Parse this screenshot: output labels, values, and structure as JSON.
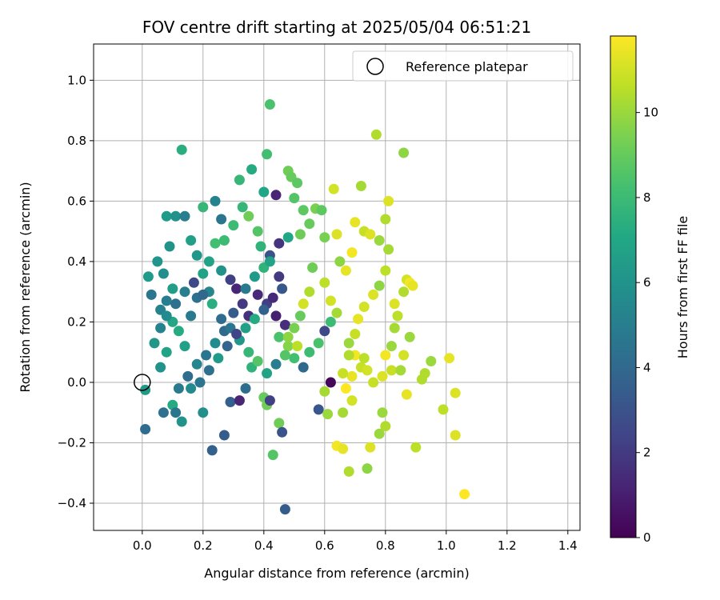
{
  "chart_data": {
    "type": "scatter",
    "title": "FOV centre drift starting at 2025/05/04 06:51:21",
    "xlabel": "Angular distance from reference (arcmin)",
    "ylabel": "Rotation from reference (arcmin)",
    "xlim": [
      -0.16,
      1.44
    ],
    "ylim": [
      -0.49,
      1.12
    ],
    "xticks": [
      0.0,
      0.2,
      0.4,
      0.6,
      0.8,
      1.0,
      1.2,
      1.4
    ],
    "xtick_labels": [
      "0.0",
      "0.2",
      "0.4",
      "0.6",
      "0.8",
      "1.0",
      "1.2",
      "1.4"
    ],
    "yticks": [
      -0.4,
      -0.2,
      0.0,
      0.2,
      0.4,
      0.6,
      0.8,
      1.0
    ],
    "ytick_labels": [
      "−0.4",
      "−0.2",
      "0.0",
      "0.2",
      "0.4",
      "0.6",
      "0.8",
      "1.0"
    ],
    "grid": true,
    "colormap": "viridis",
    "colorbar": {
      "label": "Hours from first FF file",
      "range": [
        0,
        11.8
      ],
      "ticks": [
        0,
        2,
        4,
        6,
        8,
        10
      ],
      "tick_labels": [
        "0",
        "2",
        "4",
        "6",
        "8",
        "10"
      ]
    },
    "legend": {
      "position": "top-right",
      "entries": [
        "Reference platepar"
      ]
    },
    "reference_point": {
      "x": 0.0,
      "y": 0.0
    },
    "points": [
      {
        "x": 0.01,
        "y": -0.025,
        "c": 6.3
      },
      {
        "x": 0.01,
        "y": -0.155,
        "c": 4.2
      },
      {
        "x": 0.04,
        "y": 0.13,
        "c": 6.2
      },
      {
        "x": 0.06,
        "y": 0.05,
        "c": 6.0
      },
      {
        "x": 0.08,
        "y": 0.1,
        "c": 6.8
      },
      {
        "x": 0.1,
        "y": 0.2,
        "c": 7.0
      },
      {
        "x": 0.12,
        "y": 0.17,
        "c": 7.2
      },
      {
        "x": 0.14,
        "y": 0.12,
        "c": 6.6
      },
      {
        "x": 0.06,
        "y": 0.24,
        "c": 5.2
      },
      {
        "x": 0.08,
        "y": 0.27,
        "c": 5.0
      },
      {
        "x": 0.1,
        "y": 0.31,
        "c": 6.5
      },
      {
        "x": 0.05,
        "y": 0.4,
        "c": 6.1
      },
      {
        "x": 0.07,
        "y": 0.36,
        "c": 5.8
      },
      {
        "x": 0.09,
        "y": 0.45,
        "c": 6.0
      },
      {
        "x": 0.08,
        "y": 0.55,
        "c": 6.4
      },
      {
        "x": 0.11,
        "y": 0.55,
        "c": 6.0
      },
      {
        "x": 0.13,
        "y": 0.77,
        "c": 7.4
      },
      {
        "x": 0.14,
        "y": 0.55,
        "c": 5.0
      },
      {
        "x": 0.16,
        "y": 0.47,
        "c": 6.6
      },
      {
        "x": 0.18,
        "y": 0.42,
        "c": 6.2
      },
      {
        "x": 0.2,
        "y": 0.36,
        "c": 6.8
      },
      {
        "x": 0.22,
        "y": 0.3,
        "c": 5.4
      },
      {
        "x": 0.18,
        "y": 0.28,
        "c": 4.4
      },
      {
        "x": 0.16,
        "y": 0.22,
        "c": 4.8
      },
      {
        "x": 0.2,
        "y": 0.58,
        "c": 7.8
      },
      {
        "x": 0.24,
        "y": 0.6,
        "c": 5.2
      },
      {
        "x": 0.26,
        "y": 0.54,
        "c": 4.6
      },
      {
        "x": 0.24,
        "y": 0.46,
        "c": 8.2
      },
      {
        "x": 0.27,
        "y": 0.47,
        "c": 8.0
      },
      {
        "x": 0.22,
        "y": 0.4,
        "c": 6.8
      },
      {
        "x": 0.26,
        "y": 0.37,
        "c": 6.0
      },
      {
        "x": 0.29,
        "y": 0.34,
        "c": 2.2
      },
      {
        "x": 0.31,
        "y": 0.31,
        "c": 1.2
      },
      {
        "x": 0.33,
        "y": 0.26,
        "c": 2.0
      },
      {
        "x": 0.35,
        "y": 0.22,
        "c": 1.6
      },
      {
        "x": 0.3,
        "y": 0.23,
        "c": 3.4
      },
      {
        "x": 0.27,
        "y": 0.17,
        "c": 4.0
      },
      {
        "x": 0.24,
        "y": 0.13,
        "c": 5.6
      },
      {
        "x": 0.21,
        "y": 0.09,
        "c": 4.6
      },
      {
        "x": 0.18,
        "y": 0.06,
        "c": 5.4
      },
      {
        "x": 0.15,
        "y": 0.02,
        "c": 4.2
      },
      {
        "x": 0.12,
        "y": -0.02,
        "c": 4.8
      },
      {
        "x": 0.1,
        "y": -0.075,
        "c": 7.2
      },
      {
        "x": 0.07,
        "y": -0.1,
        "c": 4.4
      },
      {
        "x": 0.11,
        "y": -0.1,
        "c": 4.6
      },
      {
        "x": 0.13,
        "y": -0.13,
        "c": 6.0
      },
      {
        "x": 0.2,
        "y": -0.1,
        "c": 5.8
      },
      {
        "x": 0.23,
        "y": -0.225,
        "c": 3.6
      },
      {
        "x": 0.27,
        "y": -0.175,
        "c": 3.4
      },
      {
        "x": 0.29,
        "y": -0.065,
        "c": 3.6
      },
      {
        "x": 0.32,
        "y": -0.06,
        "c": 1.2
      },
      {
        "x": 0.34,
        "y": -0.02,
        "c": 4.2
      },
      {
        "x": 0.36,
        "y": 0.05,
        "c": 7.6
      },
      {
        "x": 0.4,
        "y": -0.05,
        "c": 9.0
      },
      {
        "x": 0.41,
        "y": -0.075,
        "c": 9.2
      },
      {
        "x": 0.42,
        "y": -0.06,
        "c": 2.2
      },
      {
        "x": 0.43,
        "y": -0.24,
        "c": 8.6
      },
      {
        "x": 0.45,
        "y": -0.135,
        "c": 9.2
      },
      {
        "x": 0.46,
        "y": -0.165,
        "c": 3.0
      },
      {
        "x": 0.47,
        "y": -0.42,
        "c": 3.4
      },
      {
        "x": 0.42,
        "y": 0.92,
        "c": 8.4
      },
      {
        "x": 0.41,
        "y": 0.755,
        "c": 8.2
      },
      {
        "x": 0.36,
        "y": 0.705,
        "c": 7.2
      },
      {
        "x": 0.32,
        "y": 0.67,
        "c": 7.8
      },
      {
        "x": 0.4,
        "y": 0.63,
        "c": 7.0
      },
      {
        "x": 0.44,
        "y": 0.62,
        "c": 1.2
      },
      {
        "x": 0.48,
        "y": 0.7,
        "c": 9.2
      },
      {
        "x": 0.49,
        "y": 0.68,
        "c": 9.0
      },
      {
        "x": 0.51,
        "y": 0.66,
        "c": 8.8
      },
      {
        "x": 0.5,
        "y": 0.61,
        "c": 8.6
      },
      {
        "x": 0.53,
        "y": 0.57,
        "c": 8.8
      },
      {
        "x": 0.57,
        "y": 0.575,
        "c": 9.4
      },
      {
        "x": 0.59,
        "y": 0.57,
        "c": 8.8
      },
      {
        "x": 0.55,
        "y": 0.525,
        "c": 9.0
      },
      {
        "x": 0.52,
        "y": 0.49,
        "c": 9.2
      },
      {
        "x": 0.48,
        "y": 0.48,
        "c": 7.0
      },
      {
        "x": 0.45,
        "y": 0.46,
        "c": 1.8
      },
      {
        "x": 0.42,
        "y": 0.42,
        "c": 3.0
      },
      {
        "x": 0.4,
        "y": 0.38,
        "c": 7.6
      },
      {
        "x": 0.37,
        "y": 0.35,
        "c": 6.4
      },
      {
        "x": 0.34,
        "y": 0.31,
        "c": 4.8
      },
      {
        "x": 0.38,
        "y": 0.29,
        "c": 1.4
      },
      {
        "x": 0.41,
        "y": 0.26,
        "c": 2.2
      },
      {
        "x": 0.44,
        "y": 0.22,
        "c": 1.0
      },
      {
        "x": 0.47,
        "y": 0.19,
        "c": 1.6
      },
      {
        "x": 0.45,
        "y": 0.15,
        "c": 8.4
      },
      {
        "x": 0.48,
        "y": 0.12,
        "c": 9.6
      },
      {
        "x": 0.5,
        "y": 0.08,
        "c": 8.2
      },
      {
        "x": 0.53,
        "y": 0.05,
        "c": 4.0
      },
      {
        "x": 0.55,
        "y": 0.1,
        "c": 8.0
      },
      {
        "x": 0.58,
        "y": 0.13,
        "c": 8.4
      },
      {
        "x": 0.6,
        "y": 0.17,
        "c": 2.6
      },
      {
        "x": 0.62,
        "y": 0.2,
        "c": 8.0
      },
      {
        "x": 0.64,
        "y": 0.23,
        "c": 10.2
      },
      {
        "x": 0.62,
        "y": 0.27,
        "c": 11.0
      },
      {
        "x": 0.6,
        "y": 0.33,
        "c": 10.6
      },
      {
        "x": 0.6,
        "y": -0.03,
        "c": 10.2
      },
      {
        "x": 0.58,
        "y": -0.09,
        "c": 3.2
      },
      {
        "x": 0.61,
        "y": -0.105,
        "c": 10.0
      },
      {
        "x": 0.62,
        "y": 0.0,
        "c": 0.2
      },
      {
        "x": 0.63,
        "y": 0.64,
        "c": 11.0
      },
      {
        "x": 0.64,
        "y": 0.49,
        "c": 11.2
      },
      {
        "x": 0.6,
        "y": 0.48,
        "c": 9.4
      },
      {
        "x": 0.65,
        "y": 0.4,
        "c": 9.8
      },
      {
        "x": 0.67,
        "y": 0.37,
        "c": 11.4
      },
      {
        "x": 0.69,
        "y": 0.43,
        "c": 11.6
      },
      {
        "x": 0.7,
        "y": 0.53,
        "c": 11.4
      },
      {
        "x": 0.72,
        "y": 0.65,
        "c": 10.2
      },
      {
        "x": 0.73,
        "y": 0.5,
        "c": 10.8
      },
      {
        "x": 0.75,
        "y": 0.49,
        "c": 11.2
      },
      {
        "x": 0.78,
        "y": 0.47,
        "c": 10.0
      },
      {
        "x": 0.77,
        "y": 0.82,
        "c": 10.4
      },
      {
        "x": 0.81,
        "y": 0.6,
        "c": 11.2
      },
      {
        "x": 0.8,
        "y": 0.54,
        "c": 10.4
      },
      {
        "x": 0.81,
        "y": 0.44,
        "c": 10.2
      },
      {
        "x": 0.8,
        "y": 0.37,
        "c": 10.6
      },
      {
        "x": 0.78,
        "y": 0.32,
        "c": 9.8
      },
      {
        "x": 0.76,
        "y": 0.29,
        "c": 11.2
      },
      {
        "x": 0.73,
        "y": 0.25,
        "c": 11.0
      },
      {
        "x": 0.71,
        "y": 0.21,
        "c": 11.4
      },
      {
        "x": 0.7,
        "y": 0.16,
        "c": 10.8
      },
      {
        "x": 0.68,
        "y": 0.13,
        "c": 10.0
      },
      {
        "x": 0.7,
        "y": 0.09,
        "c": 11.6
      },
      {
        "x": 0.72,
        "y": 0.05,
        "c": 10.8
      },
      {
        "x": 0.69,
        "y": 0.02,
        "c": 11.4
      },
      {
        "x": 0.67,
        "y": -0.02,
        "c": 11.8
      },
      {
        "x": 0.69,
        "y": -0.06,
        "c": 11.0
      },
      {
        "x": 0.66,
        "y": -0.1,
        "c": 10.2
      },
      {
        "x": 0.64,
        "y": -0.21,
        "c": 11.6
      },
      {
        "x": 0.66,
        "y": -0.22,
        "c": 11.4
      },
      {
        "x": 0.68,
        "y": -0.295,
        "c": 10.4
      },
      {
        "x": 0.74,
        "y": -0.285,
        "c": 9.8
      },
      {
        "x": 0.75,
        "y": -0.215,
        "c": 11.2
      },
      {
        "x": 0.78,
        "y": -0.17,
        "c": 10.0
      },
      {
        "x": 0.8,
        "y": -0.145,
        "c": 10.4
      },
      {
        "x": 0.79,
        "y": -0.1,
        "c": 10.0
      },
      {
        "x": 0.82,
        "y": 0.04,
        "c": 10.8
      },
      {
        "x": 0.85,
        "y": 0.04,
        "c": 10.2
      },
      {
        "x": 0.86,
        "y": 0.09,
        "c": 11.0
      },
      {
        "x": 0.88,
        "y": 0.15,
        "c": 10.0
      },
      {
        "x": 0.87,
        "y": -0.04,
        "c": 11.4
      },
      {
        "x": 0.9,
        "y": -0.215,
        "c": 10.6
      },
      {
        "x": 0.92,
        "y": 0.01,
        "c": 10.4
      },
      {
        "x": 0.93,
        "y": 0.03,
        "c": 10.4
      },
      {
        "x": 0.95,
        "y": 0.07,
        "c": 10.0
      },
      {
        "x": 0.99,
        "y": -0.09,
        "c": 10.6
      },
      {
        "x": 1.01,
        "y": 0.08,
        "c": 11.4
      },
      {
        "x": 1.03,
        "y": -0.035,
        "c": 11.2
      },
      {
        "x": 1.03,
        "y": -0.175,
        "c": 11.2
      },
      {
        "x": 1.06,
        "y": -0.37,
        "c": 11.8
      },
      {
        "x": 0.86,
        "y": 0.76,
        "c": 9.8
      },
      {
        "x": 0.87,
        "y": 0.34,
        "c": 11.0
      },
      {
        "x": 0.88,
        "y": 0.33,
        "c": 11.6
      },
      {
        "x": 0.89,
        "y": 0.32,
        "c": 11.4
      },
      {
        "x": 0.86,
        "y": 0.3,
        "c": 10.4
      },
      {
        "x": 0.83,
        "y": 0.26,
        "c": 11.2
      },
      {
        "x": 0.84,
        "y": 0.22,
        "c": 10.6
      },
      {
        "x": 0.83,
        "y": 0.18,
        "c": 10.2
      },
      {
        "x": 0.82,
        "y": 0.12,
        "c": 10.0
      },
      {
        "x": 0.8,
        "y": 0.09,
        "c": 11.6
      },
      {
        "x": 0.79,
        "y": 0.02,
        "c": 11.2
      },
      {
        "x": 0.76,
        "y": 0.0,
        "c": 10.8
      },
      {
        "x": 0.74,
        "y": 0.04,
        "c": 11.0
      },
      {
        "x": 0.73,
        "y": 0.08,
        "c": 10.6
      },
      {
        "x": 0.56,
        "y": 0.38,
        "c": 9.2
      },
      {
        "x": 0.55,
        "y": 0.3,
        "c": 10.4
      },
      {
        "x": 0.53,
        "y": 0.26,
        "c": 11.0
      },
      {
        "x": 0.52,
        "y": 0.22,
        "c": 9.0
      },
      {
        "x": 0.5,
        "y": 0.18,
        "c": 9.4
      },
      {
        "x": 0.48,
        "y": 0.15,
        "c": 9.8
      },
      {
        "x": 0.51,
        "y": 0.12,
        "c": 10.6
      },
      {
        "x": 0.47,
        "y": 0.09,
        "c": 8.6
      },
      {
        "x": 0.44,
        "y": 0.06,
        "c": 5.0
      },
      {
        "x": 0.41,
        "y": 0.03,
        "c": 6.8
      },
      {
        "x": 0.38,
        "y": 0.07,
        "c": 8.6
      },
      {
        "x": 0.35,
        "y": 0.1,
        "c": 7.8
      },
      {
        "x": 0.32,
        "y": 0.14,
        "c": 6.2
      },
      {
        "x": 0.29,
        "y": 0.18,
        "c": 4.6
      },
      {
        "x": 0.26,
        "y": 0.21,
        "c": 4.2
      },
      {
        "x": 0.23,
        "y": 0.26,
        "c": 7.4
      },
      {
        "x": 0.2,
        "y": 0.29,
        "c": 4.0
      },
      {
        "x": 0.17,
        "y": 0.33,
        "c": 2.6
      },
      {
        "x": 0.14,
        "y": 0.3,
        "c": 5.0
      },
      {
        "x": 0.11,
        "y": 0.26,
        "c": 4.4
      },
      {
        "x": 0.08,
        "y": 0.22,
        "c": 5.6
      },
      {
        "x": 0.06,
        "y": 0.18,
        "c": 5.2
      },
      {
        "x": 0.03,
        "y": 0.29,
        "c": 4.6
      },
      {
        "x": 0.02,
        "y": 0.35,
        "c": 6.4
      },
      {
        "x": 0.3,
        "y": 0.52,
        "c": 8.0
      },
      {
        "x": 0.33,
        "y": 0.58,
        "c": 7.8
      },
      {
        "x": 0.35,
        "y": 0.55,
        "c": 9.2
      },
      {
        "x": 0.38,
        "y": 0.5,
        "c": 8.6
      },
      {
        "x": 0.39,
        "y": 0.45,
        "c": 7.6
      },
      {
        "x": 0.42,
        "y": 0.4,
        "c": 6.8
      },
      {
        "x": 0.45,
        "y": 0.35,
        "c": 2.0
      },
      {
        "x": 0.46,
        "y": 0.31,
        "c": 3.2
      },
      {
        "x": 0.43,
        "y": 0.28,
        "c": 1.4
      },
      {
        "x": 0.4,
        "y": 0.24,
        "c": 3.6
      },
      {
        "x": 0.37,
        "y": 0.21,
        "c": 7.2
      },
      {
        "x": 0.34,
        "y": 0.18,
        "c": 6.6
      },
      {
        "x": 0.31,
        "y": 0.16,
        "c": 2.4
      },
      {
        "x": 0.28,
        "y": 0.12,
        "c": 3.8
      },
      {
        "x": 0.25,
        "y": 0.08,
        "c": 6.4
      },
      {
        "x": 0.22,
        "y": 0.04,
        "c": 4.4
      },
      {
        "x": 0.19,
        "y": 0.0,
        "c": 4.6
      },
      {
        "x": 0.16,
        "y": -0.02,
        "c": 5.6
      },
      {
        "x": 0.66,
        "y": 0.03,
        "c": 10.8
      },
      {
        "x": 0.68,
        "y": 0.09,
        "c": 10.4
      }
    ]
  }
}
